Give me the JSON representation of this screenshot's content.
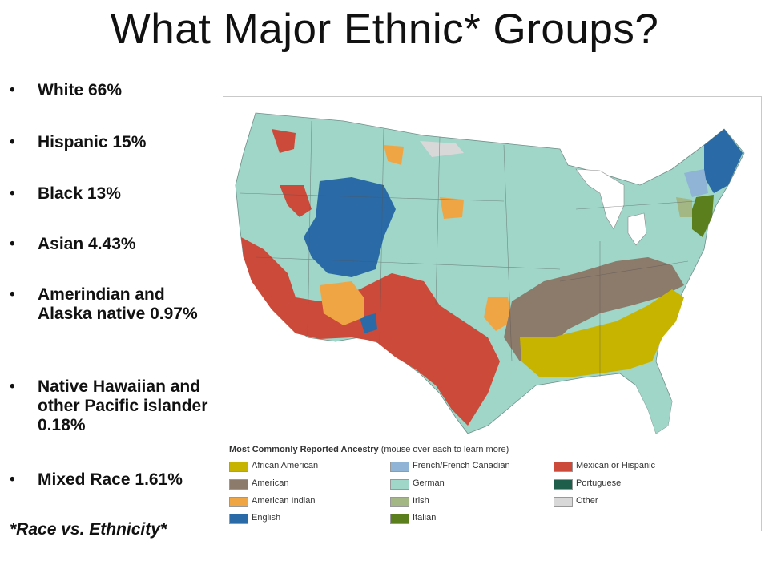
{
  "title": "What Major Ethnic* Groups?",
  "bullets": [
    {
      "text": "White 66%"
    },
    {
      "text": "Hispanic 15%"
    },
    {
      "text": "Black 13%"
    },
    {
      "text": "Asian 4.43%"
    },
    {
      "text": "Amerindian and Alaska native 0.97%"
    },
    {
      "text": "Native Hawaiian and other Pacific islander 0.18%"
    },
    {
      "text": "Mixed Race 1.61%"
    }
  ],
  "footnote": "*Race vs. Ethnicity*",
  "map": {
    "legend_title": "Most Commonly Reported Ancestry",
    "legend_subtitle": "(mouse over each to learn more)",
    "legend": [
      {
        "label": "African American",
        "color": "#c7b400"
      },
      {
        "label": "American",
        "color": "#8c7a6b"
      },
      {
        "label": "American Indian",
        "color": "#f0a545"
      },
      {
        "label": "English",
        "color": "#2a6aa6"
      },
      {
        "label": "French/French Canadian",
        "color": "#8fb4d6"
      },
      {
        "label": "German",
        "color": "#9fd6c8"
      },
      {
        "label": "Irish",
        "color": "#a3b784"
      },
      {
        "label": "Italian",
        "color": "#5c7f1e"
      },
      {
        "label": "Mexican or Hispanic",
        "color": "#cc4a3a"
      },
      {
        "label": "Portuguese",
        "color": "#1f5e4a"
      },
      {
        "label": "Other",
        "color": "#d8d8d8"
      }
    ]
  }
}
